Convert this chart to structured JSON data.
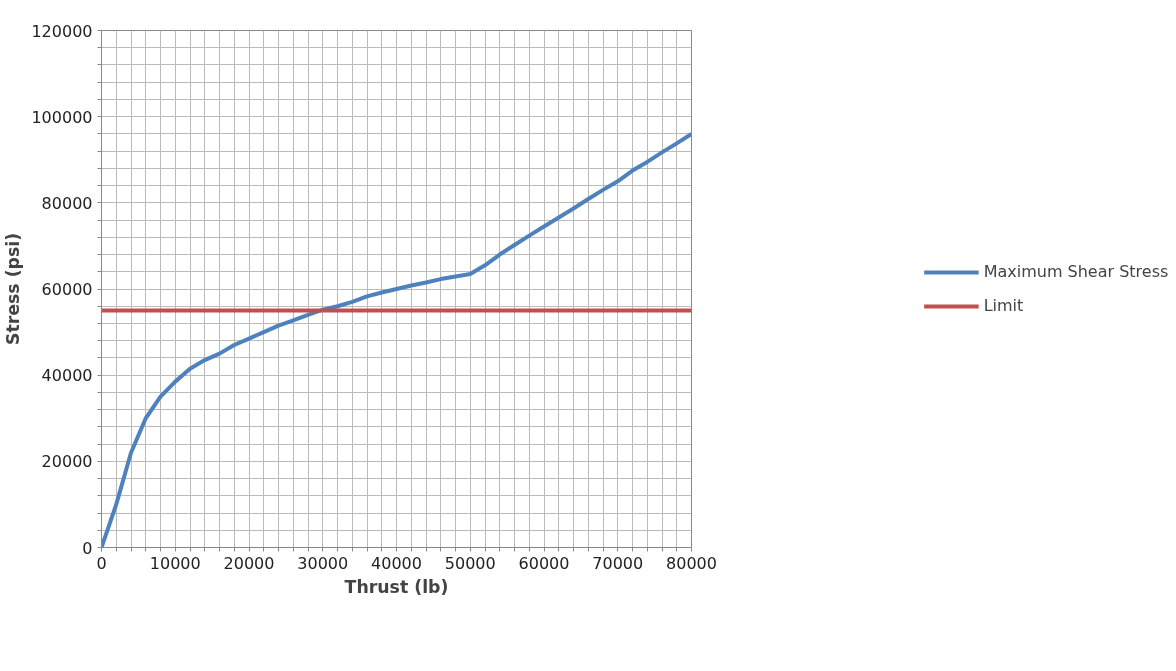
{
  "chart_data": {
    "type": "line",
    "xlabel": "Thrust (lb)",
    "ylabel": "Stress (psi)",
    "xlim": [
      0,
      80000
    ],
    "ylim": [
      0,
      120000
    ],
    "xticks": [
      0,
      {
        "value": 2000,
        "label": null
      },
      {
        "value": 4000,
        "label": null
      },
      {
        "value": 6000,
        "label": null
      },
      {
        "value": 8000,
        "label": null
      },
      10000,
      {
        "value": 12000,
        "label": null
      },
      {
        "value": 14000,
        "label": null
      },
      {
        "value": 16000,
        "label": null
      },
      {
        "value": 18000,
        "label": null
      },
      20000,
      {
        "value": 22000,
        "label": null
      },
      {
        "value": 24000,
        "label": null
      },
      {
        "value": 26000,
        "label": null
      },
      {
        "value": 28000,
        "label": null
      },
      30000,
      {
        "value": 32000,
        "label": null
      },
      {
        "value": 34000,
        "label": null
      },
      {
        "value": 36000,
        "label": null
      },
      {
        "value": 38000,
        "label": null
      },
      40000,
      {
        "value": 42000,
        "label": null
      },
      {
        "value": 44000,
        "label": null
      },
      {
        "value": 46000,
        "label": null
      },
      {
        "value": 48000,
        "label": null
      },
      50000,
      {
        "value": 52000,
        "label": null
      },
      {
        "value": 54000,
        "label": null
      },
      {
        "value": 56000,
        "label": null
      },
      {
        "value": 58000,
        "label": null
      },
      60000,
      {
        "value": 62000,
        "label": null
      },
      {
        "value": 64000,
        "label": null
      },
      {
        "value": 66000,
        "label": null
      },
      {
        "value": 68000,
        "label": null
      },
      70000,
      {
        "value": 72000,
        "label": null
      },
      {
        "value": 74000,
        "label": null
      },
      {
        "value": 76000,
        "label": null
      },
      {
        "value": 78000,
        "label": null
      },
      80000
    ],
    "yticks": [
      0,
      {
        "value": 4000,
        "label": null
      },
      {
        "value": 8000,
        "label": null
      },
      {
        "value": 12000,
        "label": null
      },
      {
        "value": 16000,
        "label": null
      },
      20000,
      {
        "value": 24000,
        "label": null
      },
      {
        "value": 28000,
        "label": null
      },
      {
        "value": 32000,
        "label": null
      },
      {
        "value": 36000,
        "label": null
      },
      40000,
      {
        "value": 44000,
        "label": null
      },
      {
        "value": 48000,
        "label": null
      },
      {
        "value": 52000,
        "label": null
      },
      {
        "value": 56000,
        "label": null
      },
      60000,
      {
        "value": 64000,
        "label": null
      },
      {
        "value": 68000,
        "label": null
      },
      {
        "value": 72000,
        "label": null
      },
      {
        "value": 76000,
        "label": null
      },
      80000,
      {
        "value": 84000,
        "label": null
      },
      {
        "value": 88000,
        "label": null
      },
      {
        "value": 92000,
        "label": null
      },
      {
        "value": 96000,
        "label": null
      },
      100000,
      {
        "value": 104000,
        "label": null
      },
      {
        "value": 108000,
        "label": null
      },
      {
        "value": 112000,
        "label": null
      },
      {
        "value": 116000,
        "label": null
      },
      120000
    ],
    "grid": true,
    "legend": "right",
    "marker": "none",
    "line_style": "solid",
    "x": [
      0,
      2000,
      4000,
      6000,
      8000,
      10000,
      12000,
      14000,
      16000,
      18000,
      20000,
      22000,
      24000,
      26000,
      28000,
      30000,
      32000,
      34000,
      36000,
      38000,
      40000,
      42000,
      44000,
      46000,
      48000,
      50000,
      52000,
      54000,
      56000,
      58000,
      60000,
      62000,
      64000,
      66000,
      68000,
      70000,
      72000,
      74000,
      76000,
      78000,
      80000
    ],
    "series": [
      {
        "name": "Maximum Shear Stress",
        "color": "#4f81bd",
        "values": [
          0,
          10000,
          22000,
          30000,
          35000,
          38500,
          41500,
          43500,
          45000,
          47000,
          48500,
          50000,
          51500,
          52700,
          54000,
          55200,
          56000,
          57000,
          58300,
          59200,
          60000,
          60800,
          61500,
          62300,
          62900,
          63500,
          65500,
          68000,
          70200,
          72400,
          74500,
          76600,
          78700,
          80900,
          83000,
          85000,
          87500,
          89500,
          91700,
          93800,
          96000
        ]
      },
      {
        "name": "Limit",
        "color": "#c0504d",
        "x": [
          0,
          80000
        ],
        "values": [
          55000,
          55000
        ]
      }
    ]
  }
}
